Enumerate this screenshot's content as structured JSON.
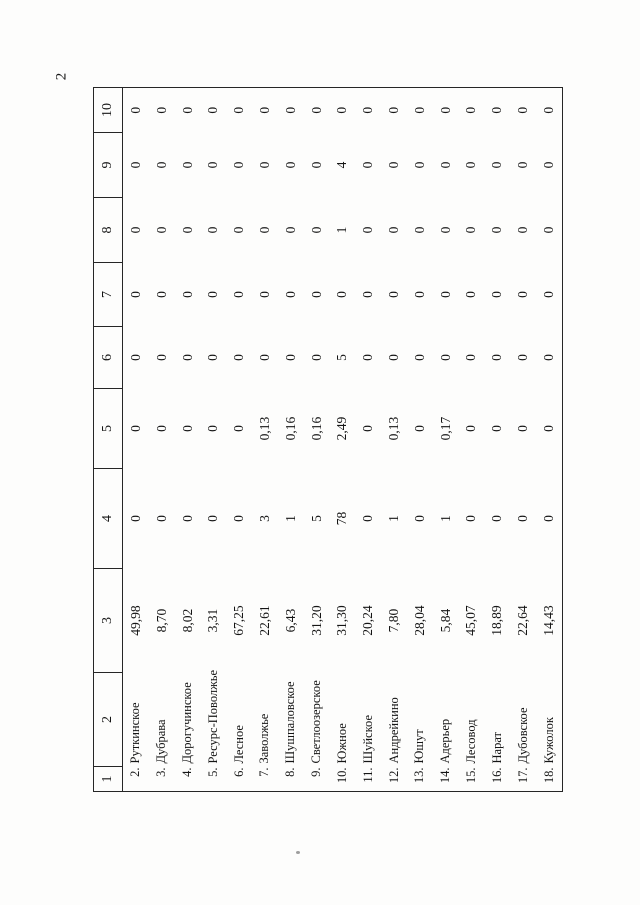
{
  "page": {
    "number": "2"
  },
  "table": {
    "headers": [
      "1",
      "2",
      "3",
      "4",
      "5",
      "6",
      "7",
      "8",
      "9",
      "10"
    ],
    "rows": [
      {
        "num": "2.",
        "name": "Руткинское",
        "values": [
          "49,98",
          "0",
          "0",
          "0",
          "0",
          "0",
          "0",
          "0"
        ]
      },
      {
        "num": "3.",
        "name": "Дубрава",
        "values": [
          "8,70",
          "0",
          "0",
          "0",
          "0",
          "0",
          "0",
          "0"
        ]
      },
      {
        "num": "4.",
        "name": "Дорогучинское",
        "values": [
          "8,02",
          "0",
          "0",
          "0",
          "0",
          "0",
          "0",
          "0"
        ]
      },
      {
        "num": "5.",
        "name": "Ресурс-Поволжье",
        "values": [
          "3,31",
          "0",
          "0",
          "0",
          "0",
          "0",
          "0",
          "0"
        ]
      },
      {
        "num": "6.",
        "name": "Лесное",
        "values": [
          "67,25",
          "0",
          "0",
          "0",
          "0",
          "0",
          "0",
          "0"
        ]
      },
      {
        "num": "7.",
        "name": "Заволжье",
        "values": [
          "22,61",
          "3",
          "0,13",
          "0",
          "0",
          "0",
          "0",
          "0"
        ]
      },
      {
        "num": "8.",
        "name": "Шушпаловское",
        "values": [
          "6,43",
          "1",
          "0,16",
          "0",
          "0",
          "0",
          "0",
          "0"
        ]
      },
      {
        "num": "9.",
        "name": "Светлоозерское",
        "values": [
          "31,20",
          "5",
          "0,16",
          "0",
          "0",
          "0",
          "0",
          "0"
        ]
      },
      {
        "num": "10.",
        "name": "Южное",
        "values": [
          "31,30",
          "78",
          "2,49",
          "5",
          "0",
          "1",
          "4",
          "0"
        ]
      },
      {
        "num": "11.",
        "name": "Шуйское",
        "values": [
          "20,24",
          "0",
          "0",
          "0",
          "0",
          "0",
          "0",
          "0"
        ]
      },
      {
        "num": "12.",
        "name": "Андрейкино",
        "values": [
          "7,80",
          "1",
          "0,13",
          "0",
          "0",
          "0",
          "0",
          "0"
        ]
      },
      {
        "num": "13.",
        "name": "Юшут",
        "values": [
          "28,04",
          "0",
          "0",
          "0",
          "0",
          "0",
          "0",
          "0"
        ]
      },
      {
        "num": "14.",
        "name": "Адерьер",
        "values": [
          "5,84",
          "1",
          "0,17",
          "0",
          "0",
          "0",
          "0",
          "0"
        ]
      },
      {
        "num": "15.",
        "name": "Лесовод",
        "values": [
          "45,07",
          "0",
          "0",
          "0",
          "0",
          "0",
          "0",
          "0"
        ]
      },
      {
        "num": "16.",
        "name": "Нарат",
        "values": [
          "18,89",
          "0",
          "0",
          "0",
          "0",
          "0",
          "0",
          "0"
        ]
      },
      {
        "num": "17.",
        "name": "Дубовское",
        "values": [
          "22,64",
          "0",
          "0",
          "0",
          "0",
          "0",
          "0",
          "0"
        ]
      },
      {
        "num": "18.",
        "name": "Кужолок",
        "values": [
          "14,43",
          "0",
          "0",
          "0",
          "0",
          "0",
          "0",
          "0"
        ]
      }
    ]
  }
}
